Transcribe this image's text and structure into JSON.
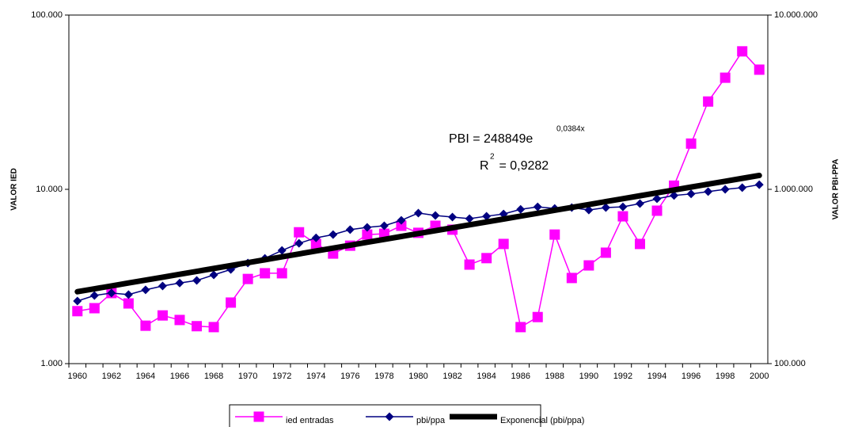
{
  "chart_data": {
    "type": "line",
    "categories": [
      "1960",
      null,
      "1962",
      null,
      "1964",
      null,
      "1966",
      null,
      "1968",
      null,
      "1970",
      null,
      "1972",
      null,
      "1974",
      null,
      "1976",
      null,
      "1978",
      null,
      "1980",
      null,
      "1982",
      null,
      "1984",
      null,
      "1986",
      null,
      "1988",
      null,
      "1990",
      null,
      "1992",
      null,
      "1994",
      null,
      "1996",
      null,
      "1998",
      null,
      "2000"
    ],
    "y_label": "VALOR IED",
    "y2_label": "VALOR PBI-PPA",
    "log_scale": true,
    "ylim": [
      1000,
      100000
    ],
    "yticks": [
      {
        "value": 1000,
        "label": "1.000"
      },
      {
        "value": 10000,
        "label": "10.000"
      },
      {
        "value": 100000,
        "label": "100.000"
      }
    ],
    "y2lim": [
      100000,
      10000000
    ],
    "y2ticks": [
      {
        "value": 100000,
        "label": "100.000"
      },
      {
        "value": 1000000,
        "label": "1.000.000"
      },
      {
        "value": 10000000,
        "label": "10.000.000"
      }
    ],
    "annotations": [
      {
        "text": "PBI = 248849e",
        "sup": "0,0384x"
      },
      {
        "text": "R",
        "sup": "2",
        "tail": " = 0,9282"
      }
    ],
    "series": [
      {
        "name": "ied entradas",
        "color": "#ff00ff",
        "marker": "square",
        "line_width": 1.5,
        "axis": "y",
        "values": [
          2000,
          2080,
          2540,
          2215,
          1650,
          1890,
          1780,
          1640,
          1620,
          2240,
          3060,
          3300,
          3300,
          5670,
          4860,
          4280,
          4750,
          5500,
          5560,
          6180,
          5630,
          6180,
          5870,
          3700,
          4030,
          4860,
          1620,
          1850,
          5500,
          3100,
          3660,
          4330,
          7000,
          4860,
          7540,
          10500,
          18300,
          31900,
          43700,
          61900,
          48600
        ]
      },
      {
        "name": "pbi/ppa",
        "color": "#000080",
        "marker": "diamond",
        "line_width": 1.5,
        "axis": "y2",
        "values": [
          228600,
          246000,
          254000,
          249000,
          265000,
          279000,
          290000,
          300000,
          323000,
          347000,
          378000,
          402000,
          446000,
          490000,
          527000,
          550000,
          587000,
          605000,
          618000,
          664000,
          731000,
          708000,
          693000,
          679000,
          701000,
          722000,
          768000,
          793000,
          777000,
          786000,
          761000,
          786000,
          793000,
          828000,
          883000,
          922000,
          941000,
          970000,
          1000000,
          1023000,
          1064000
        ]
      },
      {
        "name": "Exponencial (pbi/ppa)",
        "color": "#000000",
        "line_width": 7,
        "axis": "y2",
        "values": [
          258600,
          268700,
          279200,
          290200,
          301500,
          313300,
          325600,
          338400,
          351600,
          365400,
          379700,
          394500,
          410000,
          426000,
          442700,
          460000,
          478000,
          496800,
          516200,
          536400,
          557400,
          579200,
          601900,
          625500,
          650000,
          675400,
          701900,
          729400,
          757900,
          787600,
          818400,
          850500,
          883800,
          918400,
          954300,
          991700,
          1030500,
          1070900,
          1112800,
          1156400,
          1201700
        ]
      }
    ]
  }
}
